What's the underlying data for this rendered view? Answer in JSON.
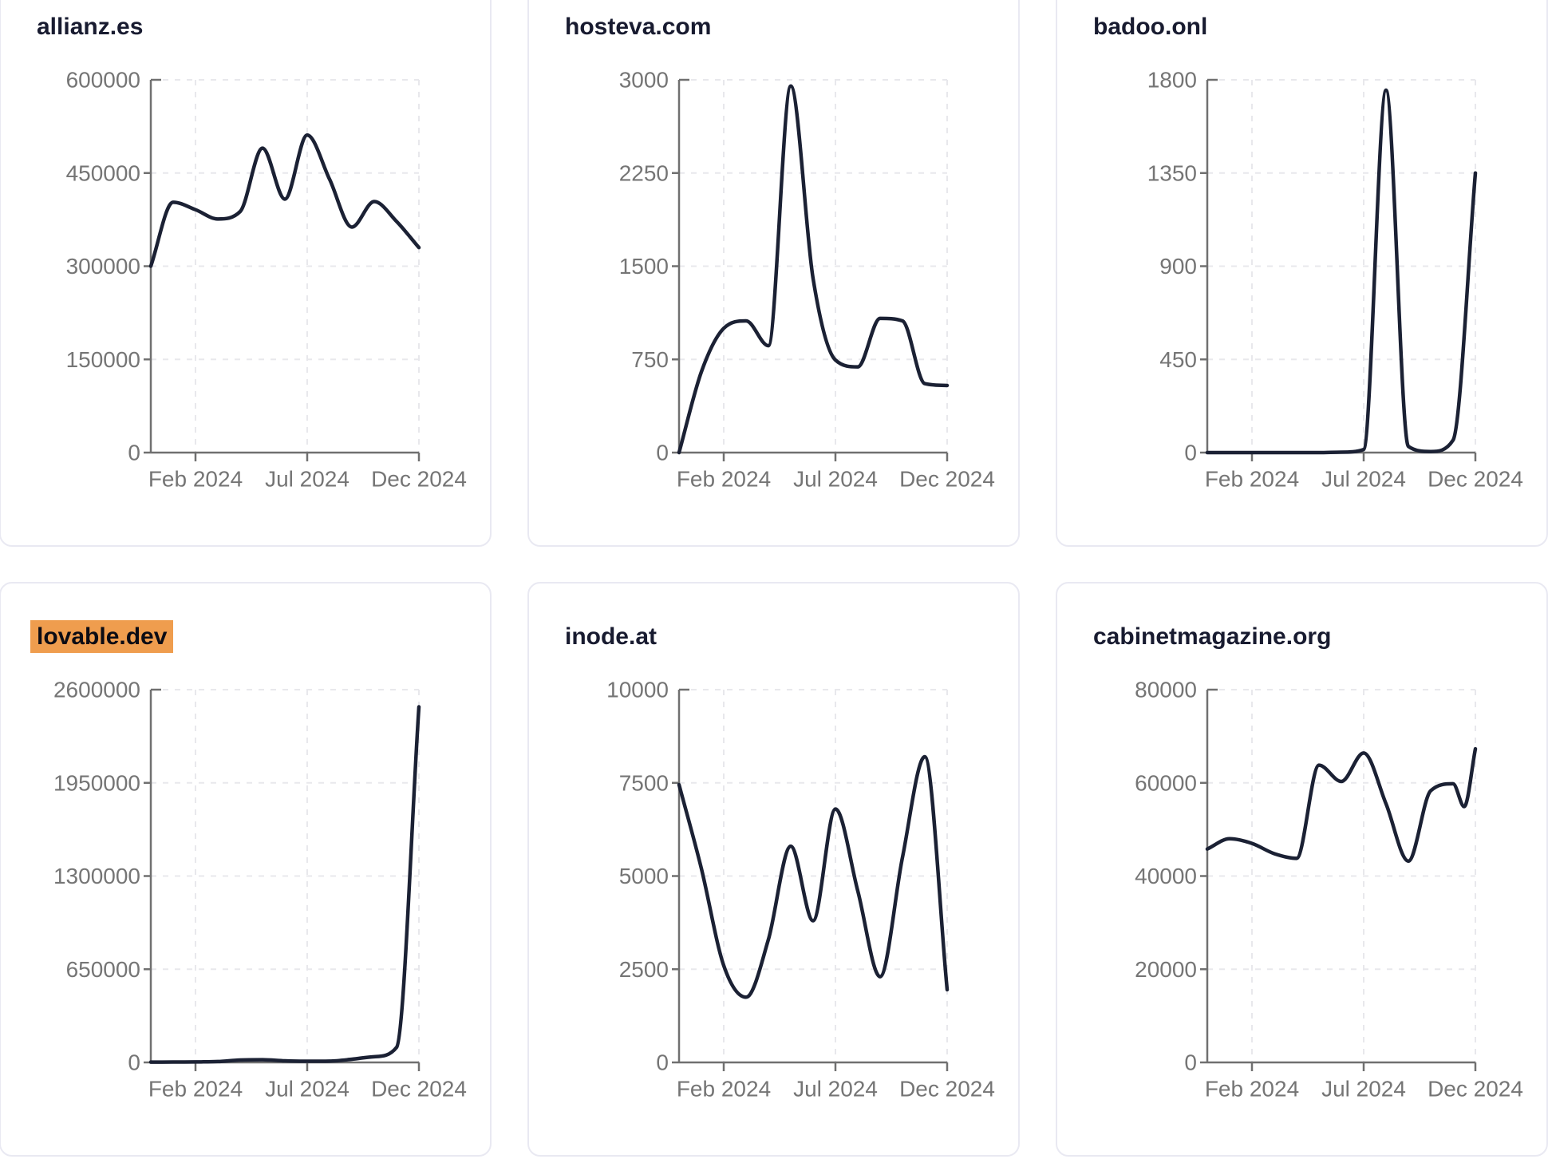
{
  "page": {
    "background": "#ffffff",
    "layout": "2-row by 3-column grid of line-chart cards"
  },
  "style": {
    "line_color": "#1b2134",
    "title_color": "#181b30",
    "axis_color": "#707070",
    "tick_label_color": "#757575",
    "grid_color": "#e8e8ec",
    "card_border_color": "#e9e9f2",
    "title_highlight_color": "#ef9d4e"
  },
  "chart_data": [
    {
      "type": "line",
      "title": "allianz.es",
      "title_highlighted": false,
      "x_unit": "months since Dec 2023 (0 = Dec 2023, 12 = Dec 2024)",
      "x_tick_labels": [
        "Feb 2024",
        "Jul 2024",
        "Dec 2024"
      ],
      "x_tick_months": [
        2,
        7,
        12
      ],
      "ylim": [
        0,
        600000
      ],
      "y_ticks": [
        0,
        150000,
        300000,
        450000,
        600000
      ],
      "grid": "dashed",
      "legend": "none",
      "points": [
        [
          0,
          300000
        ],
        [
          1,
          403000
        ],
        [
          2,
          391000
        ],
        [
          3,
          376000
        ],
        [
          4,
          388000
        ],
        [
          5,
          490000
        ],
        [
          6,
          408000
        ],
        [
          7,
          511000
        ],
        [
          8,
          440000
        ],
        [
          9,
          363000
        ],
        [
          10,
          404000
        ],
        [
          11,
          372000
        ],
        [
          12,
          330000
        ]
      ]
    },
    {
      "type": "line",
      "title": "hosteva.com",
      "title_highlighted": false,
      "x_unit": "months since Dec 2023 (0 = Dec 2023, 12 = Dec 2024)",
      "x_tick_labels": [
        "Feb 2024",
        "Jul 2024",
        "Dec 2024"
      ],
      "x_tick_months": [
        2,
        7,
        12
      ],
      "ylim": [
        0,
        3000
      ],
      "y_ticks": [
        0,
        750,
        1500,
        2250,
        3000
      ],
      "grid": "dashed",
      "legend": "none",
      "points": [
        [
          0,
          0
        ],
        [
          1,
          650
        ],
        [
          2,
          1000
        ],
        [
          3,
          1060
        ],
        [
          4,
          860
        ],
        [
          5,
          2950
        ],
        [
          6,
          1400
        ],
        [
          7,
          745
        ],
        [
          8,
          690
        ],
        [
          9,
          1080
        ],
        [
          10,
          1060
        ],
        [
          11,
          555
        ],
        [
          12,
          540
        ]
      ]
    },
    {
      "type": "line",
      "title": "badoo.onl",
      "title_highlighted": false,
      "x_unit": "months since Dec 2023 (0 = Dec 2023, 12 = Dec 2024)",
      "x_tick_labels": [
        "Feb 2024",
        "Jul 2024",
        "Dec 2024"
      ],
      "x_tick_months": [
        2,
        7,
        12
      ],
      "ylim": [
        0,
        1800
      ],
      "y_ticks": [
        0,
        450,
        900,
        1350,
        1800
      ],
      "grid": "dashed",
      "legend": "none",
      "points": [
        [
          0,
          0
        ],
        [
          1,
          0
        ],
        [
          2,
          0
        ],
        [
          3,
          0
        ],
        [
          4,
          0
        ],
        [
          5,
          0
        ],
        [
          6,
          2
        ],
        [
          7,
          15
        ],
        [
          8,
          1750
        ],
        [
          9,
          30
        ],
        [
          10,
          5
        ],
        [
          11,
          60
        ],
        [
          12,
          1350
        ]
      ]
    },
    {
      "type": "line",
      "title": "lovable.dev",
      "title_highlighted": true,
      "x_unit": "months since Dec 2023 (0 = Dec 2023, 12 = Dec 2024)",
      "x_tick_labels": [
        "Feb 2024",
        "Jul 2024",
        "Dec 2024"
      ],
      "x_tick_months": [
        2,
        7,
        12
      ],
      "ylim": [
        0,
        2600000
      ],
      "y_ticks": [
        0,
        650000,
        1300000,
        1950000,
        2600000
      ],
      "grid": "dashed",
      "legend": "none",
      "points": [
        [
          0,
          2000
        ],
        [
          1,
          2500
        ],
        [
          2,
          3500
        ],
        [
          3,
          6000
        ],
        [
          4,
          17000
        ],
        [
          5,
          19000
        ],
        [
          6,
          11000
        ],
        [
          7,
          8000
        ],
        [
          8,
          9000
        ],
        [
          9,
          22000
        ],
        [
          10,
          40000
        ],
        [
          11,
          105000
        ],
        [
          12,
          2480000
        ]
      ]
    },
    {
      "type": "line",
      "title": "inode.at",
      "title_highlighted": false,
      "x_unit": "months since Dec 2023 (0 = Dec 2023, 12 = Dec 2024)",
      "x_tick_labels": [
        "Feb 2024",
        "Jul 2024",
        "Dec 2024"
      ],
      "x_tick_months": [
        2,
        7,
        12
      ],
      "ylim": [
        0,
        10000
      ],
      "y_ticks": [
        0,
        2500,
        5000,
        7500,
        10000
      ],
      "grid": "dashed",
      "legend": "none",
      "points": [
        [
          0,
          7450
        ],
        [
          1,
          5200
        ],
        [
          2,
          2600
        ],
        [
          3,
          1750
        ],
        [
          4,
          3300
        ],
        [
          5,
          5800
        ],
        [
          6,
          3800
        ],
        [
          7,
          6800
        ],
        [
          8,
          4600
        ],
        [
          9,
          2300
        ],
        [
          10,
          5500
        ],
        [
          11,
          8200
        ],
        [
          12,
          1950
        ]
      ]
    },
    {
      "type": "line",
      "title": "cabinetmagazine.org",
      "title_highlighted": false,
      "x_unit": "months since Dec 2023 (0 = Dec 2023, 12 = Dec 2024)",
      "x_tick_labels": [
        "Feb 2024",
        "Jul 2024",
        "Dec 2024"
      ],
      "x_tick_months": [
        2,
        7,
        12
      ],
      "ylim": [
        0,
        80000
      ],
      "y_ticks": [
        0,
        20000,
        40000,
        60000,
        80000
      ],
      "grid": "dashed",
      "legend": "none",
      "points": [
        [
          0,
          45800
        ],
        [
          1,
          48000
        ],
        [
          2,
          47000
        ],
        [
          3,
          44800
        ],
        [
          4,
          43800
        ],
        [
          5,
          63800
        ],
        [
          6,
          60300
        ],
        [
          7,
          66400
        ],
        [
          8,
          55500
        ],
        [
          9,
          43200
        ],
        [
          10,
          58300
        ],
        [
          11,
          59800
        ],
        [
          11.5,
          54900
        ],
        [
          12,
          67300
        ]
      ]
    }
  ]
}
